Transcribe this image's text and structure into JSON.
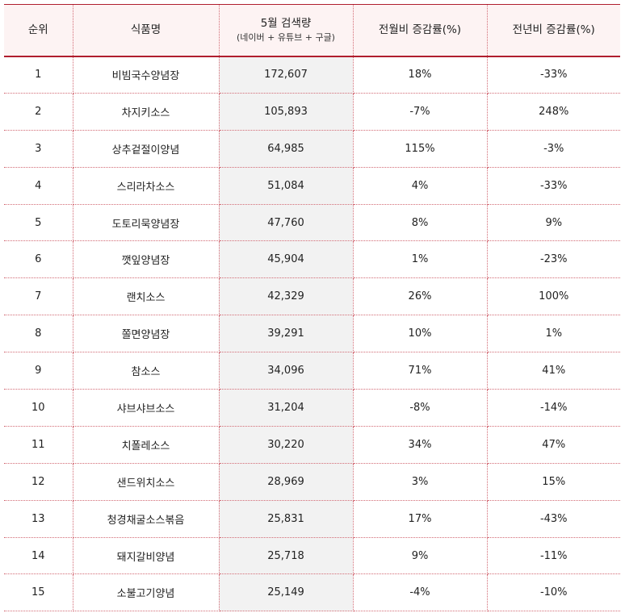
{
  "table": {
    "headers": {
      "rank": "순위",
      "food": "식품명",
      "volume": "5월 검색량",
      "volume_sub": "(네이버 + 유튜브 + 구글)",
      "mom": "전월비 증감률(%)",
      "yoy": "전년비 증감률(%)"
    },
    "rows": [
      {
        "rank": "1",
        "food": "비빔국수양념장",
        "volume": "172,607",
        "mom": "18%",
        "yoy": "-33%"
      },
      {
        "rank": "2",
        "food": "차지키소스",
        "volume": "105,893",
        "mom": "-7%",
        "yoy": "248%"
      },
      {
        "rank": "3",
        "food": "상추겉절이양념",
        "volume": "64,985",
        "mom": "115%",
        "yoy": "-3%"
      },
      {
        "rank": "4",
        "food": "스리라차소스",
        "volume": "51,084",
        "mom": "4%",
        "yoy": "-33%"
      },
      {
        "rank": "5",
        "food": "도토리묵양념장",
        "volume": "47,760",
        "mom": "8%",
        "yoy": "9%"
      },
      {
        "rank": "6",
        "food": "깻잎양념장",
        "volume": "45,904",
        "mom": "1%",
        "yoy": "-23%"
      },
      {
        "rank": "7",
        "food": "랜치소스",
        "volume": "42,329",
        "mom": "26%",
        "yoy": "100%"
      },
      {
        "rank": "8",
        "food": "쫄면양념장",
        "volume": "39,291",
        "mom": "10%",
        "yoy": "1%"
      },
      {
        "rank": "9",
        "food": "참소스",
        "volume": "34,096",
        "mom": "71%",
        "yoy": "41%"
      },
      {
        "rank": "10",
        "food": "샤브샤브소스",
        "volume": "31,204",
        "mom": "-8%",
        "yoy": "-14%"
      },
      {
        "rank": "11",
        "food": "치폴레소스",
        "volume": "30,220",
        "mom": "34%",
        "yoy": "47%"
      },
      {
        "rank": "12",
        "food": "샌드위치소스",
        "volume": "28,969",
        "mom": "3%",
        "yoy": "15%"
      },
      {
        "rank": "13",
        "food": "청경채굴소스볶음",
        "volume": "25,831",
        "mom": "17%",
        "yoy": "-43%"
      },
      {
        "rank": "14",
        "food": "돼지갈비양념",
        "volume": "25,718",
        "mom": "9%",
        "yoy": "-11%"
      },
      {
        "rank": "15",
        "food": "소불고기양념",
        "volume": "25,149",
        "mom": "-4%",
        "yoy": "-10%"
      }
    ]
  },
  "colors": {
    "header_bg": "#fdf3f3",
    "border_red": "#b01e2e",
    "volume_col_bg": "#f2f2f2"
  }
}
